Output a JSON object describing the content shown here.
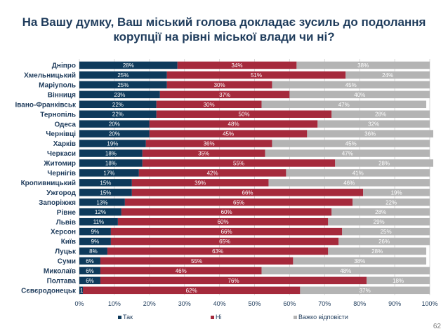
{
  "title_lines": [
    "На Вашу думку, Ваш міський голова докладає зусиль до подолання",
    "корупції на рівні міської влади чи ні?"
  ],
  "page_number": "62",
  "colors": {
    "tak": "#0e3a5b",
    "ni": "#a52a3c",
    "vazhko": "#b4b4b4",
    "title": "#1f3c5c"
  },
  "chart_data": {
    "type": "bar",
    "orientation": "horizontal",
    "stacked": "percent",
    "title": "На Вашу думку, Ваш міський голова докладає зусиль до подолання корупції на рівні міської влади чи ні?",
    "categories": [
      "Дніпро",
      "Хмельницький",
      "Маріуполь",
      "Вінниця",
      "Івано-Франківськ",
      "Тернопіль",
      "Одеса",
      "Чернівці",
      "Харків",
      "Черкаси",
      "Житомир",
      "Чернігів",
      "Кропивницький",
      "Ужгород",
      "Запоріжжя",
      "Рівне",
      "Львів",
      "Херсон",
      "Київ",
      "Луцьк",
      "Суми",
      "Миколаїв",
      "Полтава",
      "Сєвєродонецьк"
    ],
    "series": [
      {
        "name": "Так",
        "color": "#0e3a5b",
        "values": [
          28,
          25,
          25,
          23,
          22,
          22,
          20,
          20,
          19,
          18,
          18,
          17,
          15,
          15,
          13,
          12,
          11,
          9,
          9,
          8,
          6,
          6,
          6,
          1
        ]
      },
      {
        "name": "Ні",
        "color": "#a52a3c",
        "values": [
          34,
          51,
          30,
          37,
          30,
          50,
          48,
          45,
          36,
          35,
          55,
          42,
          39,
          66,
          65,
          60,
          60,
          66,
          65,
          63,
          55,
          46,
          76,
          62
        ]
      },
      {
        "name": "Важко відповісти",
        "color": "#b4b4b4",
        "values": [
          38,
          24,
          45,
          40,
          47,
          28,
          32,
          36,
          45,
          47,
          28,
          41,
          46,
          19,
          22,
          28,
          29,
          25,
          26,
          28,
          38,
          48,
          18,
          37
        ]
      }
    ],
    "xlim": [
      0,
      100
    ],
    "xticks": [
      "0%",
      "10%",
      "20%",
      "30%",
      "40%",
      "50%",
      "60%",
      "70%",
      "80%",
      "90%",
      "100%"
    ],
    "grid": true,
    "legend_position": "bottom"
  }
}
